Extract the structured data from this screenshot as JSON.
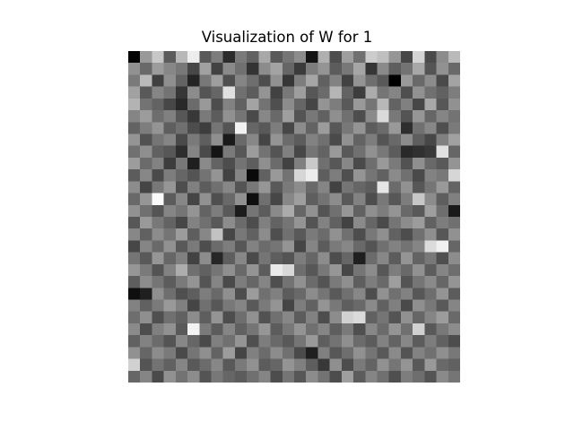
{
  "chart_data": {
    "type": "heatmap",
    "title": "Visualization of W for 1",
    "xlabel": "",
    "ylabel": "",
    "axes_visible": false,
    "grid": false,
    "colormap": "gray",
    "vmin": 0,
    "vmax": 1,
    "rows": 28,
    "cols": 28,
    "values": [
      [
        0.02,
        0.6,
        0.78,
        0.36,
        0.72,
        0.93,
        0.35,
        0.49,
        0.17,
        0.48,
        0.38,
        0.66,
        0.35,
        0.46,
        0.55,
        0.08,
        0.69,
        0.3,
        0.62,
        0.44,
        0.8,
        0.75,
        0.59,
        0.28,
        0.83,
        0.29,
        0.55,
        0.73
      ],
      [
        0.57,
        0.41,
        0.61,
        0.53,
        0.47,
        0.28,
        0.63,
        0.26,
        0.54,
        0.44,
        0.2,
        0.55,
        0.64,
        0.4,
        0.23,
        0.49,
        0.58,
        0.36,
        0.47,
        0.65,
        0.21,
        0.54,
        0.37,
        0.45,
        0.66,
        0.33,
        0.57,
        0.41
      ],
      [
        0.48,
        0.73,
        0.25,
        0.56,
        0.39,
        0.14,
        0.47,
        0.62,
        0.31,
        0.52,
        0.43,
        0.3,
        0.57,
        0.21,
        0.49,
        0.65,
        0.38,
        0.51,
        0.26,
        0.58,
        0.43,
        0.35,
        0.0,
        0.6,
        0.41,
        0.55,
        0.29,
        0.64
      ],
      [
        0.63,
        0.35,
        0.52,
        0.45,
        0.21,
        0.55,
        0.33,
        0.4,
        0.88,
        0.44,
        0.36,
        0.58,
        0.26,
        0.47,
        0.62,
        0.34,
        0.42,
        0.71,
        0.39,
        0.24,
        0.67,
        0.46,
        0.52,
        0.31,
        0.57,
        0.44,
        0.38,
        0.49
      ],
      [
        0.7,
        0.45,
        0.39,
        0.28,
        0.16,
        0.42,
        0.6,
        0.3,
        0.51,
        0.38,
        0.64,
        0.45,
        0.31,
        0.55,
        0.4,
        0.27,
        0.58,
        0.49,
        0.35,
        0.6,
        0.46,
        0.72,
        0.39,
        0.5,
        0.28,
        0.66,
        0.34,
        0.57
      ],
      [
        0.52,
        0.61,
        0.43,
        0.5,
        0.34,
        0.22,
        0.48,
        0.36,
        0.57,
        0.46,
        0.29,
        0.53,
        0.41,
        0.62,
        0.33,
        0.47,
        0.38,
        0.56,
        0.44,
        0.3,
        0.54,
        0.86,
        0.47,
        0.33,
        0.59,
        0.4,
        0.52,
        0.45
      ],
      [
        0.39,
        0.49,
        0.58,
        0.37,
        0.44,
        0.3,
        0.24,
        0.46,
        0.33,
        0.95,
        0.4,
        0.35,
        0.49,
        0.28,
        0.55,
        0.39,
        0.61,
        0.34,
        0.47,
        0.58,
        0.36,
        0.42,
        0.6,
        0.18,
        0.44,
        0.53,
        0.31,
        0.48
      ],
      [
        0.58,
        0.32,
        0.46,
        0.52,
        0.29,
        0.48,
        0.37,
        0.56,
        0.1,
        0.41,
        0.53,
        0.27,
        0.58,
        0.42,
        0.36,
        0.51,
        0.44,
        0.29,
        0.57,
        0.39,
        0.49,
        0.33,
        0.41,
        0.55,
        0.37,
        0.28,
        0.5,
        0.63
      ],
      [
        0.44,
        0.56,
        0.38,
        0.34,
        0.18,
        0.52,
        0.29,
        0.08,
        0.48,
        0.34,
        0.61,
        0.45,
        0.33,
        0.5,
        0.28,
        0.46,
        0.39,
        0.6,
        0.35,
        0.44,
        0.57,
        0.47,
        0.36,
        0.16,
        0.19,
        0.22,
        0.88,
        0.4
      ],
      [
        0.61,
        0.42,
        0.51,
        0.24,
        0.47,
        0.12,
        0.54,
        0.39,
        0.3,
        0.45,
        0.37,
        0.56,
        0.42,
        0.26,
        0.5,
        0.79,
        0.44,
        0.34,
        0.53,
        0.29,
        0.43,
        0.6,
        0.48,
        0.32,
        0.56,
        0.41,
        0.35,
        0.58
      ],
      [
        0.36,
        0.53,
        0.29,
        0.49,
        0.4,
        0.33,
        0.45,
        0.58,
        0.26,
        0.52,
        0.04,
        0.38,
        0.6,
        0.45,
        0.84,
        0.93,
        0.37,
        0.49,
        0.31,
        0.58,
        0.46,
        0.38,
        0.54,
        0.44,
        0.29,
        0.51,
        0.47,
        0.84
      ],
      [
        0.55,
        0.27,
        0.47,
        0.59,
        0.3,
        0.5,
        0.36,
        0.44,
        0.53,
        0.33,
        0.47,
        0.59,
        0.35,
        0.48,
        0.55,
        0.41,
        0.52,
        0.26,
        0.46,
        0.4,
        0.36,
        0.9,
        0.42,
        0.57,
        0.34,
        0.46,
        0.6,
        0.39
      ],
      [
        0.41,
        0.59,
        0.98,
        0.36,
        0.53,
        0.27,
        0.57,
        0.31,
        0.41,
        0.57,
        0.06,
        0.44,
        0.28,
        0.53,
        0.62,
        0.37,
        0.45,
        0.55,
        0.35,
        0.51,
        0.3,
        0.47,
        0.34,
        0.49,
        0.78,
        0.55,
        0.37,
        0.5
      ],
      [
        0.57,
        0.44,
        0.33,
        0.52,
        0.46,
        0.58,
        0.39,
        0.49,
        0.35,
        0.11,
        0.46,
        0.36,
        0.54,
        0.67,
        0.4,
        0.57,
        0.33,
        0.44,
        0.59,
        0.38,
        0.56,
        0.49,
        0.58,
        0.41,
        0.35,
        0.62,
        0.43,
        0.1
      ],
      [
        0.34,
        0.6,
        0.47,
        0.39,
        0.28,
        0.51,
        0.44,
        0.35,
        0.55,
        0.42,
        0.3,
        0.5,
        0.39,
        0.46,
        0.58,
        0.33,
        0.51,
        0.38,
        0.26,
        0.54,
        0.4,
        0.29,
        0.46,
        0.55,
        0.61,
        0.38,
        0.49,
        0.44
      ],
      [
        0.53,
        0.38,
        0.55,
        0.46,
        0.61,
        0.37,
        0.53,
        0.76,
        0.28,
        0.47,
        0.38,
        0.55,
        0.31,
        0.44,
        0.35,
        0.48,
        0.42,
        0.57,
        0.44,
        0.3,
        0.47,
        0.56,
        0.38,
        0.3,
        0.44,
        0.56,
        0.34,
        0.57
      ],
      [
        0.28,
        0.52,
        0.41,
        0.57,
        0.35,
        0.48,
        0.3,
        0.42,
        0.49,
        0.34,
        0.51,
        0.42,
        0.46,
        0.58,
        0.27,
        0.52,
        0.36,
        0.48,
        0.53,
        0.41,
        0.33,
        0.44,
        0.51,
        0.45,
        0.52,
        0.86,
        0.94,
        0.4
      ],
      [
        0.46,
        0.35,
        0.59,
        0.4,
        0.5,
        0.26,
        0.55,
        0.15,
        0.37,
        0.53,
        0.29,
        0.46,
        0.37,
        0.33,
        0.49,
        0.4,
        0.55,
        0.3,
        0.4,
        0.12,
        0.42,
        0.53,
        0.36,
        0.58,
        0.39,
        0.47,
        0.31,
        0.55
      ],
      [
        0.59,
        0.48,
        0.33,
        0.51,
        0.68,
        0.44,
        0.38,
        0.46,
        0.56,
        0.41,
        0.58,
        0.36,
        0.92,
        0.85,
        0.43,
        0.34,
        0.47,
        0.59,
        0.28,
        0.46,
        0.55,
        0.34,
        0.49,
        0.41,
        0.57,
        0.36,
        0.52,
        0.43
      ],
      [
        0.37,
        0.55,
        0.46,
        0.36,
        0.48,
        0.58,
        0.33,
        0.52,
        0.29,
        0.49,
        0.4,
        0.52,
        0.31,
        0.45,
        0.57,
        0.42,
        0.33,
        0.48,
        0.56,
        0.37,
        0.49,
        0.41,
        0.62,
        0.33,
        0.46,
        0.54,
        0.4,
        0.58
      ],
      [
        0.06,
        0.12,
        0.56,
        0.43,
        0.31,
        0.37,
        0.49,
        0.41,
        0.56,
        0.3,
        0.61,
        0.44,
        0.5,
        0.36,
        0.41,
        0.55,
        0.46,
        0.35,
        0.44,
        0.53,
        0.3,
        0.57,
        0.44,
        0.51,
        0.34,
        0.43,
        0.58,
        0.36
      ],
      [
        0.51,
        0.38,
        0.48,
        0.6,
        0.5,
        0.27,
        0.44,
        0.34,
        0.47,
        0.52,
        0.35,
        0.48,
        0.58,
        0.27,
        0.49,
        0.38,
        0.58,
        0.47,
        0.37,
        0.41,
        0.54,
        0.38,
        0.5,
        0.29,
        0.56,
        0.47,
        0.35,
        0.52
      ],
      [
        0.43,
        0.56,
        0.31,
        0.44,
        0.38,
        0.55,
        0.37,
        0.58,
        0.3,
        0.43,
        0.57,
        0.32,
        0.44,
        0.53,
        0.36,
        0.51,
        0.3,
        0.55,
        0.82,
        0.86,
        0.38,
        0.46,
        0.33,
        0.57,
        0.4,
        0.52,
        0.61,
        0.41
      ],
      [
        0.54,
        0.3,
        0.5,
        0.57,
        0.35,
        0.95,
        0.48,
        0.36,
        0.52,
        0.38,
        0.46,
        0.59,
        0.36,
        0.47,
        0.58,
        0.44,
        0.52,
        0.37,
        0.48,
        0.31,
        0.53,
        0.42,
        0.58,
        0.44,
        0.82,
        0.35,
        0.47,
        0.55
      ],
      [
        0.38,
        0.51,
        0.42,
        0.33,
        0.53,
        0.4,
        0.29,
        0.5,
        0.44,
        0.58,
        0.31,
        0.49,
        0.41,
        0.35,
        0.46,
        0.6,
        0.37,
        0.45,
        0.56,
        0.42,
        0.36,
        0.51,
        0.39,
        0.53,
        0.36,
        0.49,
        0.38,
        0.3
      ],
      [
        0.57,
        0.4,
        0.55,
        0.48,
        0.29,
        0.46,
        0.56,
        0.39,
        0.61,
        0.27,
        0.5,
        0.42,
        0.55,
        0.44,
        0.29,
        0.12,
        0.5,
        0.34,
        0.43,
        0.57,
        0.46,
        0.35,
        0.54,
        0.33,
        0.51,
        0.44,
        0.56,
        0.47
      ],
      [
        0.82,
        0.33,
        0.45,
        0.38,
        0.52,
        0.35,
        0.42,
        0.53,
        0.35,
        0.48,
        0.57,
        0.36,
        0.4,
        0.58,
        0.5,
        0.37,
        0.22,
        0.56,
        0.3,
        0.48,
        0.39,
        0.57,
        0.46,
        0.58,
        0.35,
        0.6,
        0.41,
        0.38
      ],
      [
        0.4,
        0.52,
        0.29,
        0.57,
        0.45,
        0.55,
        0.33,
        0.47,
        0.4,
        0.36,
        0.44,
        0.52,
        0.3,
        0.46,
        0.34,
        0.55,
        0.45,
        0.3,
        0.62,
        0.36,
        0.52,
        0.44,
        0.31,
        0.49,
        0.43,
        0.33,
        0.54,
        0.46
      ]
    ]
  }
}
